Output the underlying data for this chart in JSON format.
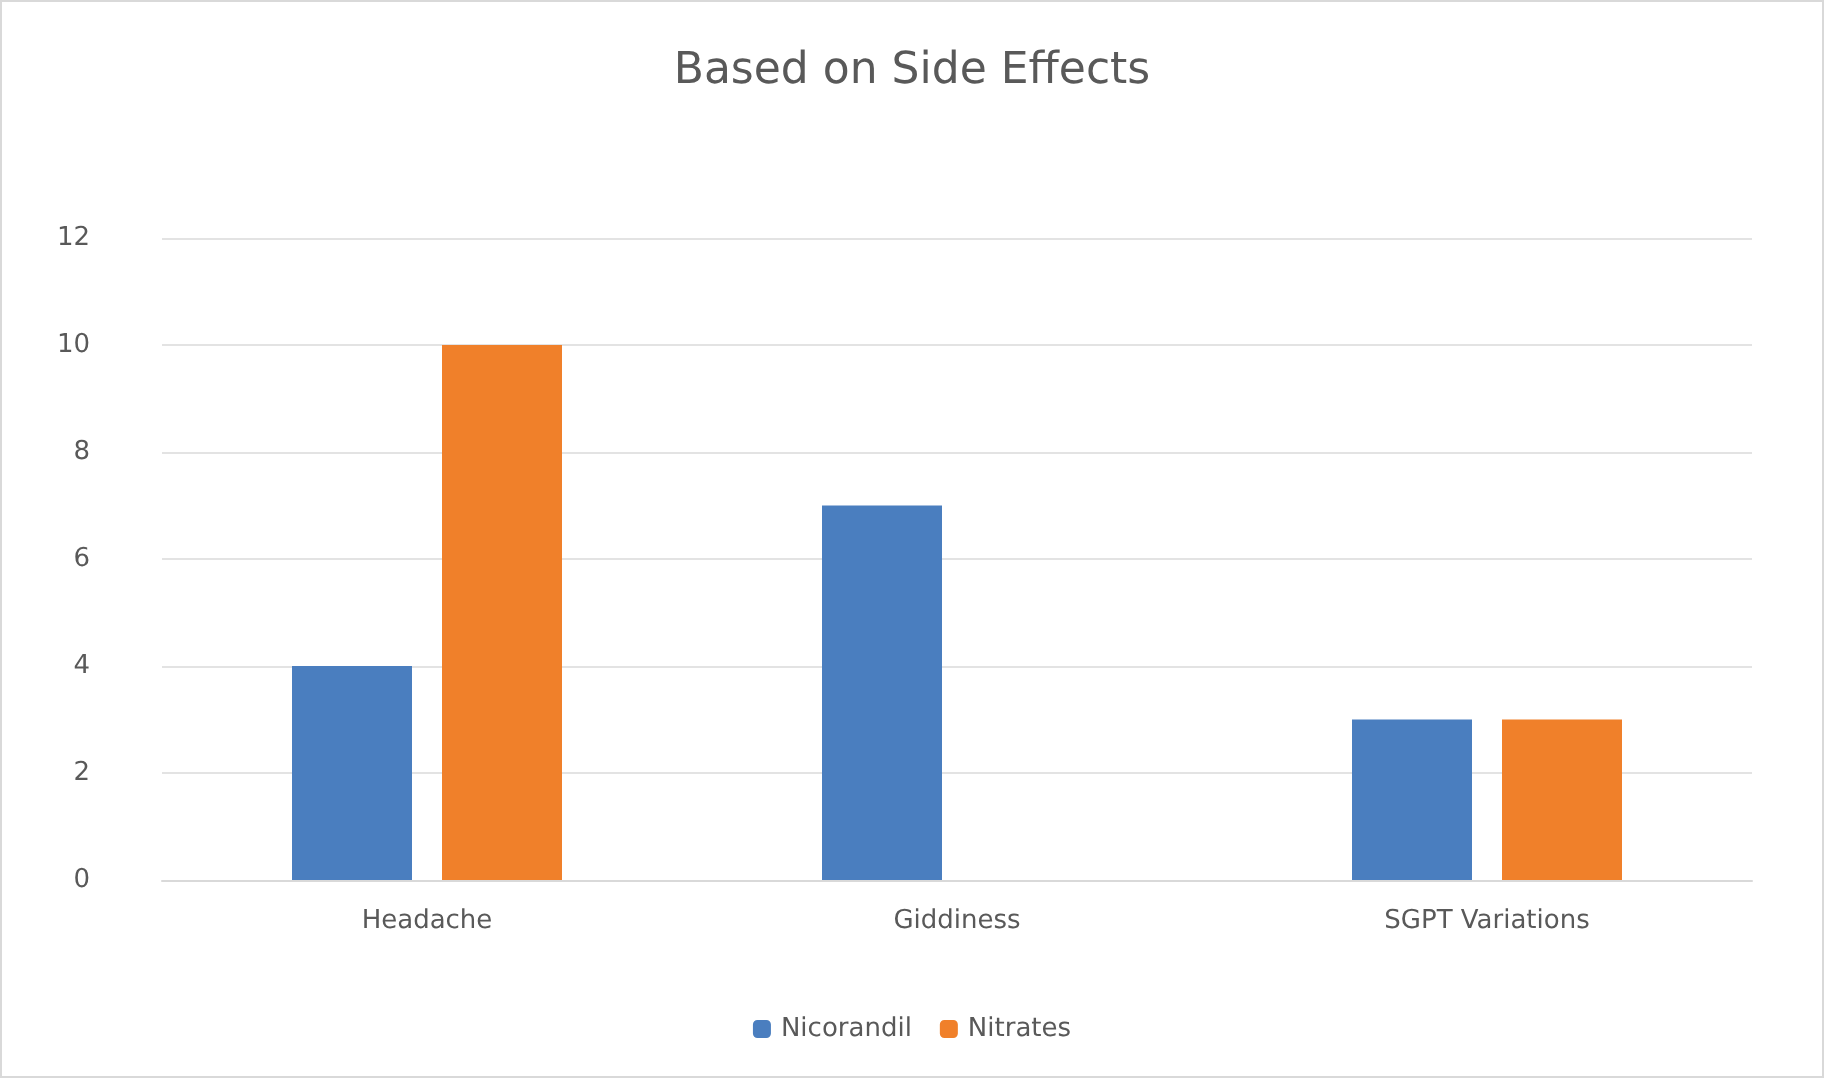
{
  "chart_data": {
    "type": "bar",
    "title": "Based on Side Effects",
    "categories": [
      "Headache",
      "Giddiness",
      "SGPT Variations"
    ],
    "series": [
      {
        "name": "Nicorandil",
        "color": "#4a7ebf",
        "values": [
          4,
          7,
          3
        ]
      },
      {
        "name": "Nitrates",
        "color": "#f0802a",
        "values": [
          10,
          0,
          3
        ]
      }
    ],
    "ylim": [
      0,
      12
    ],
    "yticks": [
      0,
      2,
      4,
      6,
      8,
      10,
      12
    ],
    "grid": "y",
    "legend": "bottom"
  }
}
